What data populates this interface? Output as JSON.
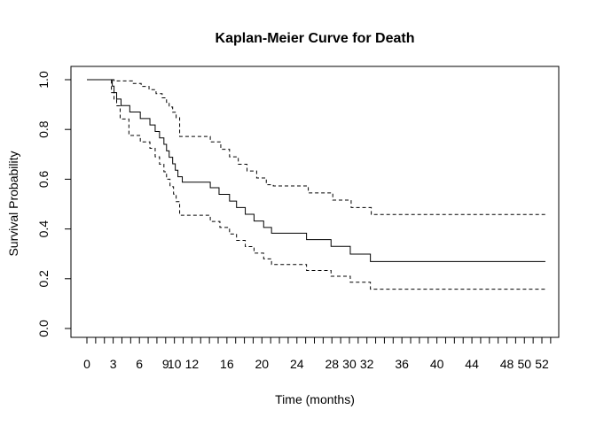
{
  "chart_data": {
    "type": "line",
    "title": "Kaplan-Meier Curve for Death",
    "xlabel": "Time (months)",
    "ylabel": "Survival Probability",
    "xlim": [
      0,
      53
    ],
    "ylim": [
      0,
      1
    ],
    "grid": false,
    "x_ticks_minor": [
      0,
      1,
      2,
      3,
      4,
      5,
      6,
      7,
      8,
      9,
      10,
      11,
      12,
      13,
      14,
      15,
      16,
      17,
      18,
      19,
      20,
      21,
      22,
      23,
      24,
      25,
      26,
      27,
      28,
      29,
      30,
      31,
      32,
      33,
      34,
      35,
      36,
      37,
      38,
      39,
      40,
      41,
      42,
      43,
      44,
      45,
      46,
      47,
      48,
      49,
      50,
      51,
      52,
      53
    ],
    "x_tick_labels": [
      {
        "value": 0,
        "label": "0"
      },
      {
        "value": 3,
        "label": "3"
      },
      {
        "value": 6,
        "label": "6"
      },
      {
        "value": 9,
        "label": "9"
      },
      {
        "value": 10,
        "label": "10"
      },
      {
        "value": 12,
        "label": "12"
      },
      {
        "value": 16,
        "label": "16"
      },
      {
        "value": 20,
        "label": "20"
      },
      {
        "value": 24,
        "label": "24"
      },
      {
        "value": 28,
        "label": "28"
      },
      {
        "value": 30,
        "label": "30"
      },
      {
        "value": 32,
        "label": "32"
      },
      {
        "value": 36,
        "label": "36"
      },
      {
        "value": 40,
        "label": "40"
      },
      {
        "value": 44,
        "label": "44"
      },
      {
        "value": 48,
        "label": "48"
      },
      {
        "value": 50,
        "label": "50"
      },
      {
        "value": 52,
        "label": "52"
      }
    ],
    "y_tick_labels": [
      {
        "value": 0.0,
        "label": "0.0"
      },
      {
        "value": 0.2,
        "label": "0.2"
      },
      {
        "value": 0.4,
        "label": "0.4"
      },
      {
        "value": 0.6,
        "label": "0.6"
      },
      {
        "value": 0.8,
        "label": "0.8"
      },
      {
        "value": 1.0,
        "label": "1.0"
      }
    ],
    "series": [
      {
        "style": "solid",
        "x": [
          0,
          2.9,
          3.1,
          3.4,
          3.9,
          4.9,
          6.1,
          7.2,
          7.8,
          8.3,
          8.8,
          9.1,
          9.4,
          9.8,
          10.1,
          10.4,
          10.9,
          14.1,
          15.1,
          16.3,
          17.1,
          18.1,
          19.1,
          20.2,
          21.1,
          25.1,
          27.9,
          30.1,
          32.4,
          52.4
        ],
        "y": [
          1.0,
          0.974,
          0.948,
          0.922,
          0.896,
          0.87,
          0.844,
          0.818,
          0.792,
          0.766,
          0.74,
          0.714,
          0.688,
          0.662,
          0.636,
          0.61,
          0.588,
          0.566,
          0.539,
          0.512,
          0.486,
          0.459,
          0.432,
          0.406,
          0.383,
          0.357,
          0.33,
          0.299,
          0.269,
          0.269
        ]
      },
      {
        "style": "dashed",
        "x": [
          0,
          3.1,
          5.2,
          6.2,
          7.1,
          7.9,
          8.6,
          9.1,
          9.4,
          9.8,
          10.2,
          10.6,
          14.1,
          15.3,
          16.3,
          17.3,
          18.3,
          19.4,
          20.5,
          21.3,
          25.3,
          28.1,
          30.2,
          32.5,
          52.4
        ],
        "y": [
          1.0,
          0.995,
          0.985,
          0.973,
          0.96,
          0.944,
          0.927,
          0.909,
          0.89,
          0.869,
          0.847,
          0.772,
          0.75,
          0.72,
          0.69,
          0.66,
          0.633,
          0.605,
          0.578,
          0.573,
          0.545,
          0.516,
          0.486,
          0.458,
          0.458
        ]
      },
      {
        "style": "dashed",
        "x": [
          0,
          2.8,
          3.1,
          3.4,
          3.8,
          4.8,
          6.1,
          7.2,
          7.8,
          8.3,
          8.8,
          9.1,
          9.5,
          9.9,
          10.2,
          10.6,
          14.1,
          15.2,
          16.3,
          17.1,
          18.1,
          19.1,
          20.2,
          21.1,
          25.1,
          27.9,
          30.1,
          32.4,
          52.4
        ],
        "y": [
          1.0,
          0.948,
          0.92,
          0.895,
          0.842,
          0.776,
          0.75,
          0.724,
          0.69,
          0.66,
          0.63,
          0.6,
          0.57,
          0.54,
          0.51,
          0.455,
          0.43,
          0.406,
          0.38,
          0.354,
          0.329,
          0.303,
          0.28,
          0.257,
          0.233,
          0.21,
          0.186,
          0.158,
          0.158
        ]
      }
    ]
  }
}
